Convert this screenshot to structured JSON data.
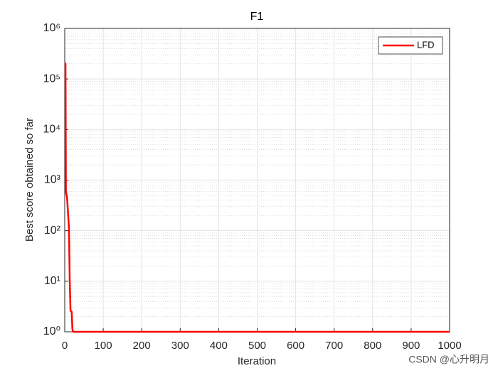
{
  "chart_data": {
    "type": "line",
    "title": "F1",
    "x_label": "Iteration",
    "y_label": "Best score obtained so far",
    "series": [
      {
        "name": "LFD",
        "color": "#ff0000",
        "x": [
          1,
          2,
          3,
          4,
          6,
          9,
          11,
          13,
          15,
          18,
          20,
          22,
          1000
        ],
        "values": [
          210000,
          200000,
          600,
          550,
          450,
          200,
          110,
          10,
          2.6,
          2.5,
          1.1,
          1,
          1
        ]
      }
    ],
    "xlim": [
      0,
      1000
    ],
    "xticks": [
      0,
      100,
      200,
      300,
      400,
      500,
      600,
      700,
      800,
      900,
      1000
    ],
    "ylim": [
      1,
      1000000
    ],
    "y_scale": "log",
    "yticks": [
      {
        "value": 1,
        "label": "10⁰"
      },
      {
        "value": 10,
        "label": "10¹"
      },
      {
        "value": 100,
        "label": "10²"
      },
      {
        "value": 1000,
        "label": "10³"
      },
      {
        "value": 10000,
        "label": "10⁴"
      },
      {
        "value": 100000,
        "label": "10⁵"
      },
      {
        "value": 1000000,
        "label": "10⁶"
      }
    ],
    "grid": true,
    "minor_grid": true,
    "legend": "northeast"
  },
  "watermark": "CSDN @心升明月"
}
